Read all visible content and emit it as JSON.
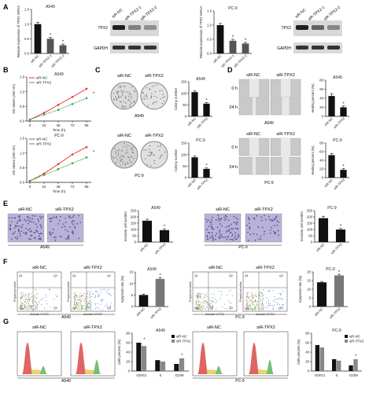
{
  "panel_letters": [
    "A",
    "B",
    "C",
    "D",
    "E",
    "F",
    "G"
  ],
  "colors": {
    "black": "#111111",
    "gray": "#555555",
    "red": "#e8332a",
    "green": "#3aa64a",
    "blot_bg": "#d8d8d8",
    "transwell": "#8f86b8",
    "flow_red": "#d94a4a",
    "flow_green": "#5ab55a"
  },
  "chart_data": [
    {
      "id": "A1",
      "type": "bar",
      "title": "A549",
      "ylabel": "Relative expression of TPX2 mRNA",
      "categories": [
        "siR-NC",
        "siR-TPX2-1",
        "siR-TPX2-2"
      ],
      "values": [
        1.0,
        0.5,
        0.28
      ],
      "errors": [
        0.06,
        0.05,
        0.04
      ],
      "ylim": [
        0,
        1.5
      ],
      "yticks": [
        "0.0",
        "0.5",
        "1.0",
        "1.5"
      ],
      "sig": [
        "",
        "*",
        "*"
      ],
      "colors": [
        "#111111",
        "#555555",
        "#555555"
      ]
    },
    {
      "id": "A2",
      "type": "bar",
      "title": "PC-9",
      "ylabel": "Relative expression of TPX2 mRNA",
      "categories": [
        "siR-NC",
        "siR-TPX2-1",
        "siR-TPX2-2"
      ],
      "values": [
        1.0,
        0.45,
        0.35
      ],
      "errors": [
        0.06,
        0.05,
        0.04
      ],
      "ylim": [
        0,
        1.5
      ],
      "yticks": [
        "0.0",
        "0.5",
        "1.0",
        "1.5"
      ],
      "sig": [
        "",
        "*",
        "*"
      ],
      "colors": [
        "#111111",
        "#555555",
        "#555555"
      ]
    },
    {
      "id": "B1",
      "type": "line",
      "title": "A549",
      "xlabel": "Time (h)",
      "ylabel": "OD values (450 nm)",
      "x": [
        0,
        24,
        48,
        72,
        96
      ],
      "ylim": [
        0,
        1.5
      ],
      "yticks": [
        "0.0",
        "0.5",
        "1.0",
        "1.5"
      ],
      "series": [
        {
          "name": "siR-NC",
          "values": [
            0.05,
            0.28,
            0.55,
            0.82,
            1.1
          ],
          "color": "#e8332a"
        },
        {
          "name": "siR-TPX2",
          "values": [
            0.05,
            0.22,
            0.38,
            0.58,
            0.78
          ],
          "color": "#3aa64a"
        }
      ],
      "sig": "*"
    },
    {
      "id": "B2",
      "type": "line",
      "title": "PC-9",
      "xlabel": "Time (h)",
      "ylabel": "OD values (450 nm)",
      "x": [
        0,
        24,
        48,
        72,
        96
      ],
      "ylim": [
        0,
        1.5
      ],
      "yticks": [
        "0.0",
        "0.5",
        "1.0",
        "1.5"
      ],
      "series": [
        {
          "name": "siR-NC",
          "values": [
            0.05,
            0.3,
            0.62,
            0.95,
            1.2
          ],
          "color": "#e8332a"
        },
        {
          "name": "siR-TPX2",
          "values": [
            0.05,
            0.25,
            0.45,
            0.65,
            0.85
          ],
          "color": "#3aa64a"
        }
      ],
      "sig": "*"
    },
    {
      "id": "C1",
      "type": "bar",
      "title": "A549",
      "ylabel": "Colony number",
      "categories": [
        "siR-NC",
        "siR-TPX2"
      ],
      "values": [
        105,
        55
      ],
      "errors": [
        6,
        5
      ],
      "ylim": [
        0,
        150
      ],
      "yticks": [
        "0",
        "50",
        "100",
        "150"
      ],
      "sig": [
        "",
        "*"
      ],
      "colors": [
        "#111111",
        "#111111"
      ]
    },
    {
      "id": "C2",
      "type": "bar",
      "title": "PC-9",
      "ylabel": "Colony number",
      "categories": [
        "siR-NC",
        "siR-TPX2"
      ],
      "values": [
        88,
        38
      ],
      "errors": [
        6,
        4
      ],
      "ylim": [
        0,
        150
      ],
      "yticks": [
        "0",
        "50",
        "100",
        "150"
      ],
      "sig": [
        "",
        "*"
      ],
      "colors": [
        "#111111",
        "#111111"
      ]
    },
    {
      "id": "D1",
      "type": "bar",
      "title": "A549",
      "ylabel": "Healing percent (%)",
      "categories": [
        "siR-NC",
        "siR-TPX2"
      ],
      "values": [
        45,
        20
      ],
      "errors": [
        5,
        3
      ],
      "ylim": [
        0,
        80
      ],
      "yticks": [
        "0",
        "20",
        "40",
        "60",
        "80"
      ],
      "sig": [
        "",
        "*"
      ],
      "colors": [
        "#111111",
        "#111111"
      ]
    },
    {
      "id": "D2",
      "type": "bar",
      "title": "PC-9",
      "ylabel": "Healing percent (%)",
      "categories": [
        "siR-NC",
        "siR-TPX2"
      ],
      "values": [
        52,
        18
      ],
      "errors": [
        4,
        3
      ],
      "ylim": [
        0,
        80
      ],
      "yticks": [
        "0",
        "20",
        "40",
        "60",
        "80"
      ],
      "sig": [
        "",
        "*"
      ],
      "colors": [
        "#111111",
        "#111111"
      ]
    },
    {
      "id": "E1",
      "type": "bar",
      "title": "A549",
      "ylabel": "Invasive cell number",
      "categories": [
        "siR-NC",
        "siR-TPX2"
      ],
      "values": [
        170,
        95
      ],
      "errors": [
        12,
        10
      ],
      "ylim": [
        0,
        250
      ],
      "yticks": [
        "0",
        "50",
        "100",
        "150",
        "200",
        "250"
      ],
      "sig": [
        "",
        "*"
      ],
      "colors": [
        "#111111",
        "#111111"
      ]
    },
    {
      "id": "E2",
      "type": "bar",
      "title": "PC-9",
      "ylabel": "Invasive cell number",
      "categories": [
        "siR-NC",
        "siR-TPX2"
      ],
      "values": [
        190,
        100
      ],
      "errors": [
        15,
        8
      ],
      "ylim": [
        0,
        250
      ],
      "yticks": [
        "0",
        "50",
        "100",
        "150",
        "200",
        "250"
      ],
      "sig": [
        "",
        "*"
      ],
      "colors": [
        "#111111",
        "#111111"
      ]
    },
    {
      "id": "F1",
      "type": "bar",
      "title": "A549",
      "ylabel": "Apoptosis rate (%)",
      "categories": [
        "siR-NC",
        "siR-TPX2"
      ],
      "values": [
        5,
        12
      ],
      "errors": [
        0.4,
        0.6
      ],
      "ylim": [
        0,
        15
      ],
      "yticks": [
        "0",
        "5",
        "10",
        "15"
      ],
      "sig": [
        "",
        "*"
      ],
      "colors": [
        "#111111",
        "#777777"
      ]
    },
    {
      "id": "F2",
      "type": "bar",
      "title": "PC-9",
      "ylabel": "Apoptosis rate (%)",
      "categories": [
        "siR-NC",
        "siR-TPX2"
      ],
      "values": [
        14,
        18
      ],
      "errors": [
        0.5,
        0.6
      ],
      "ylim": [
        0,
        20
      ],
      "yticks": [
        "0",
        "5",
        "10",
        "15",
        "20"
      ],
      "sig": [
        "",
        "*"
      ],
      "colors": [
        "#111111",
        "#777777"
      ]
    },
    {
      "id": "G1",
      "type": "bar",
      "title": "A549",
      "ylabel": "Cells percent (%)",
      "categories": [
        "G0/G1",
        "S",
        "G2/M"
      ],
      "series": [
        {
          "name": "siR-NC",
          "values": [
            60,
            23,
            15
          ],
          "color": "#111111"
        },
        {
          "name": "siR-TPX2",
          "values": [
            53,
            20,
            27
          ],
          "color": "#888888"
        }
      ],
      "ylim": [
        0,
        80
      ],
      "yticks": [
        "0",
        "20",
        "40",
        "60",
        "80"
      ],
      "sig": [
        "*",
        "",
        "*"
      ]
    },
    {
      "id": "G2",
      "type": "bar",
      "title": "PC-9",
      "ylabel": "Cells percent (%)",
      "categories": [
        "G0/G1",
        "S",
        "G2/M"
      ],
      "series": [
        {
          "name": "siR-NC",
          "values": [
            55,
            25,
            12
          ],
          "color": "#111111"
        },
        {
          "name": "siR-TPX2",
          "values": [
            50,
            22,
            25
          ],
          "color": "#888888"
        }
      ],
      "ylim": [
        0,
        80
      ],
      "yticks": [
        "0",
        "20",
        "40",
        "60",
        "80"
      ],
      "sig": [
        "",
        "",
        "*"
      ]
    }
  ],
  "blots": {
    "a549": {
      "lanes": [
        "siR-NC",
        "siR-TPX2-1",
        "siR-TPX2-2"
      ],
      "rows": [
        "TPX2",
        "GAPDH"
      ],
      "tpx2_intensity": [
        1.0,
        0.35,
        0.25
      ]
    },
    "pc9": {
      "lanes": [
        "siR-NC",
        "siR-TPX2-1",
        "siR-TPX2-2"
      ],
      "rows": [
        "TPX2",
        "GAPDH"
      ],
      "tpx2_intensity": [
        1.0,
        0.55,
        0.3
      ]
    }
  },
  "images": {
    "colony_headers": [
      "siR-NC",
      "siR-TPX2"
    ],
    "colony_a549_label": "A549",
    "colony_pc9_label": "PC-9",
    "wound_headers": [
      "siR-NC",
      "siR-TPX2"
    ],
    "wound_times": [
      "0 h",
      "24 h"
    ],
    "wound_a549_label": "A549",
    "wound_pc9_label": "PC-9",
    "transwell_headers": [
      "siR-NC",
      "siR-TPX2"
    ],
    "transwell_a549_label": "A549",
    "transwell_pc9_label": "PC-9",
    "flow_headers": [
      "siR-NC",
      "siR-TPX2"
    ],
    "flow_a549_label": "A549",
    "flow_pc9_label": "PC-9",
    "flow_xlabel": "Annexin V-FITC",
    "flow_ylabel": "Propidium Iodide",
    "flow_quadrants": [
      "Q1",
      "Q2",
      "Q3",
      "Q4"
    ],
    "cycle_headers": [
      "siR-NC",
      "siR-TPX2"
    ],
    "cycle_a549_label": "A549",
    "cycle_pc9_label": "PC-9"
  }
}
